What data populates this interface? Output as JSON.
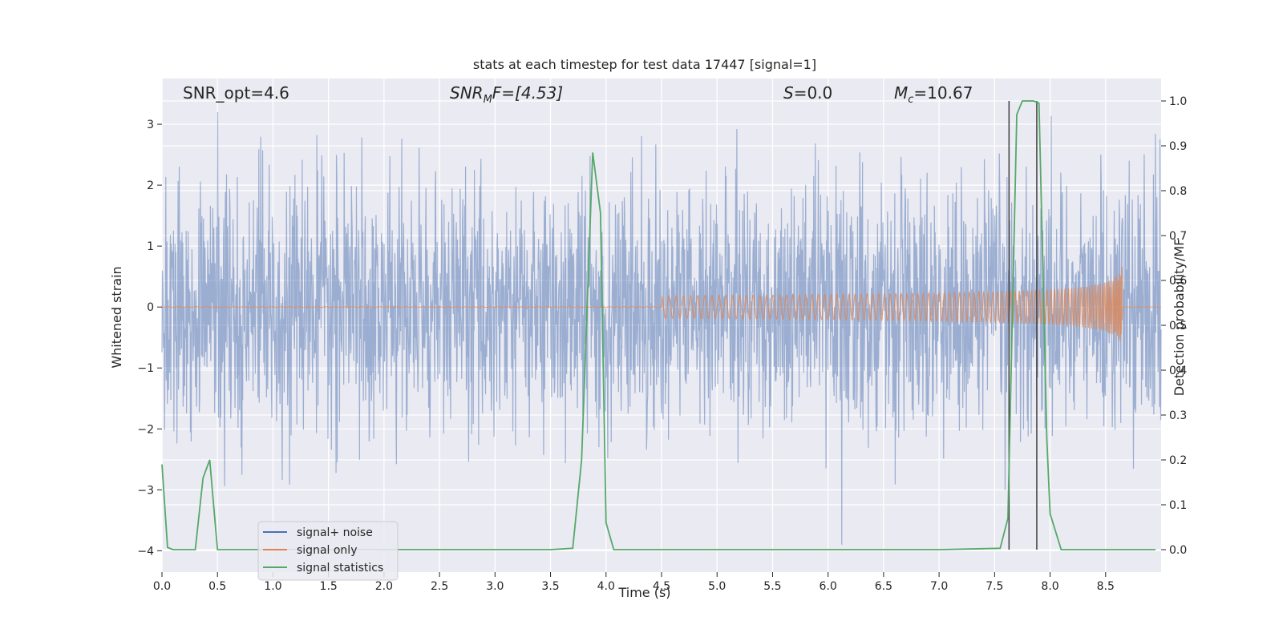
{
  "chart_data": {
    "type": "line",
    "title": "stats at each timestep for test data 17447 [signal=1]",
    "xlabel": "Time (s)",
    "ylabel_left": "Whitened strain",
    "ylabel_right": "Detection probability/MF",
    "xlim": [
      0.0,
      9.0
    ],
    "ylim_left": [
      -4.35,
      3.75
    ],
    "ylim_right": [
      -0.05,
      1.05
    ],
    "x_ticks": [
      "0.0",
      "0.5",
      "1.0",
      "1.5",
      "2.0",
      "2.5",
      "3.0",
      "3.5",
      "4.0",
      "4.5",
      "5.0",
      "5.5",
      "6.0",
      "6.5",
      "7.0",
      "7.5",
      "8.0",
      "8.5"
    ],
    "y_ticks_left": [
      "3",
      "2",
      "1",
      "0",
      "−1",
      "−2",
      "−3",
      "−4"
    ],
    "y_ticks_right": [
      "1.0",
      "0.9",
      "0.8",
      "0.7",
      "0.6",
      "0.5",
      "0.4",
      "0.3",
      "0.2",
      "0.1",
      "0.0"
    ],
    "grid": true,
    "legend_position": "lower-left",
    "annotations": {
      "snr_opt": "SNR_opt=4.6",
      "snr_mf": "SNR",
      "snr_mf_sub": "M",
      "snr_mf_rest": "F=[4.53]",
      "s_label": "S",
      "s_rest": "=0.0",
      "mc_label": "M",
      "mc_sub": "c",
      "mc_rest": "=10.67"
    },
    "vertical_lines_x": [
      7.63,
      7.88
    ],
    "series": [
      {
        "name": "signal+ noise",
        "color": "#4c72b0",
        "axis": "left",
        "description_range": [
          -3.9,
          3.2
        ]
      },
      {
        "name": "signal only",
        "color": "#dd8452",
        "axis": "left",
        "chirp_end_x": 8.65,
        "chirp_peak_amplitude": 0.7
      },
      {
        "name": "signal statistics",
        "color": "#55a868",
        "axis": "right",
        "x": [
          0.0,
          0.05,
          0.1,
          0.2,
          0.3,
          0.37,
          0.43,
          0.5,
          0.6,
          1.0,
          2.0,
          3.0,
          3.5,
          3.7,
          3.78,
          3.88,
          3.95,
          4.0,
          4.07,
          4.2,
          5.0,
          6.0,
          7.0,
          7.55,
          7.62,
          7.7,
          7.75,
          7.85,
          7.9,
          7.97,
          8.0,
          8.1,
          8.5,
          8.95
        ],
        "y": [
          0.19,
          0.005,
          0.0,
          0.0,
          0.0,
          0.16,
          0.2,
          0.0,
          0.0,
          0.0,
          0.0,
          0.0,
          0.0,
          0.003,
          0.2,
          0.885,
          0.75,
          0.06,
          0.0,
          0.0,
          0.0,
          0.0,
          0.0,
          0.003,
          0.07,
          0.97,
          1.0,
          1.0,
          0.995,
          0.25,
          0.08,
          0.0,
          0.0,
          0.0
        ]
      }
    ]
  }
}
